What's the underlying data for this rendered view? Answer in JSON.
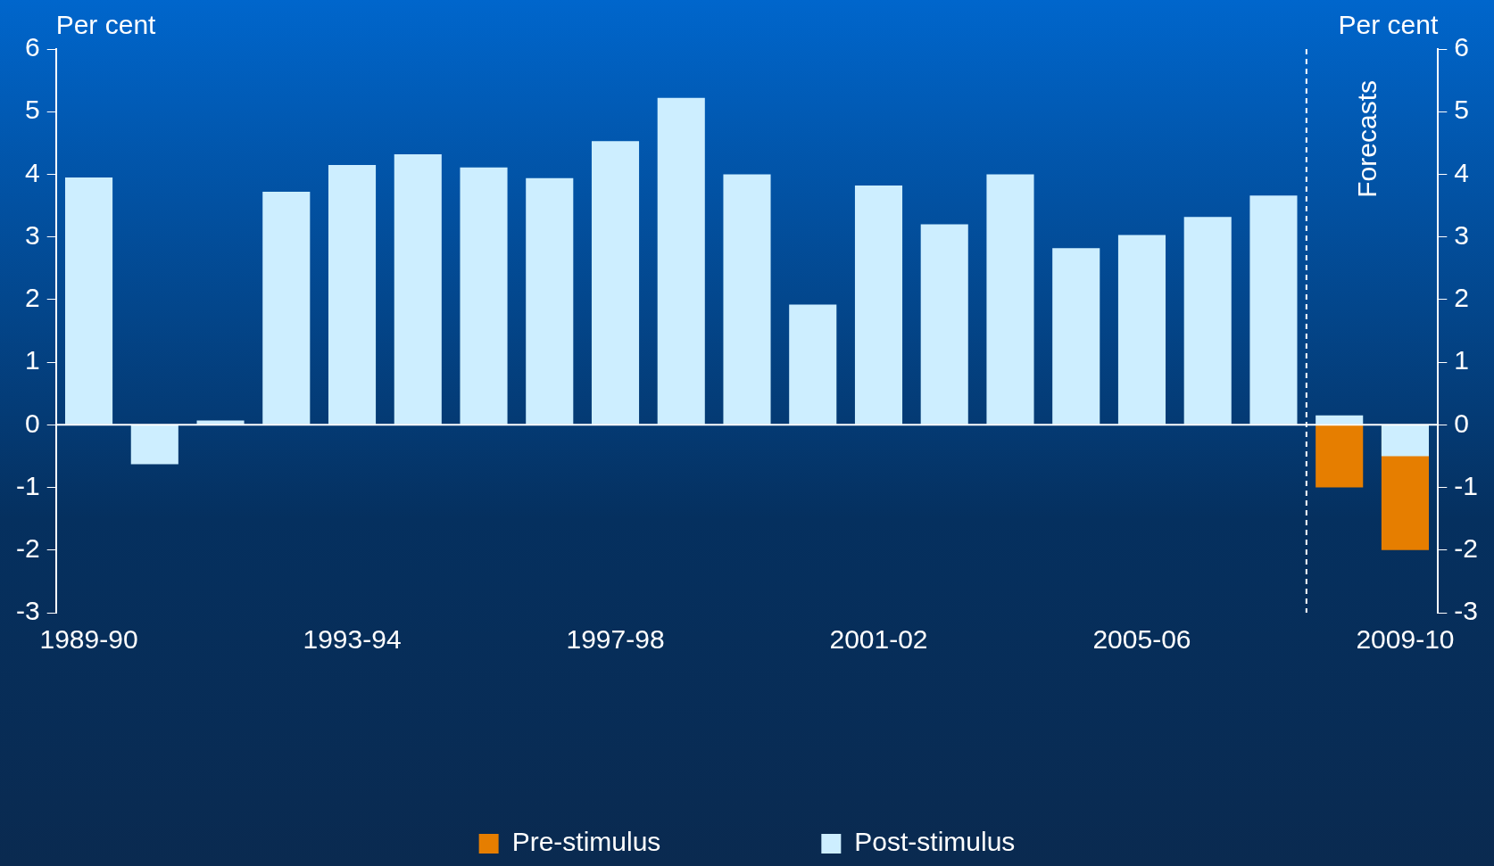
{
  "chart_data": {
    "type": "bar",
    "ylabel": "Per cent",
    "y2label": "Per cent",
    "categories": [
      "1989-90",
      null,
      null,
      null,
      "1993-94",
      null,
      null,
      null,
      "1997-98",
      null,
      null,
      null,
      "2001-02",
      null,
      null,
      null,
      "2005-06",
      null,
      null,
      null,
      "2009-10"
    ],
    "series": [
      {
        "name": "Pre-stimulus",
        "color": "#e67e00",
        "values": [
          null,
          null,
          null,
          null,
          null,
          null,
          null,
          null,
          null,
          null,
          null,
          null,
          null,
          null,
          null,
          null,
          null,
          null,
          null,
          -1,
          -2
        ]
      },
      {
        "name": "Post-stimulus",
        "color": "#cdeeff",
        "values": [
          3.95,
          -0.63,
          0.07,
          3.72,
          4.15,
          4.32,
          4.11,
          3.94,
          4.53,
          5.22,
          4.0,
          1.92,
          3.82,
          3.2,
          4.0,
          2.82,
          3.03,
          3.32,
          3.66,
          0.15,
          -0.5
        ]
      }
    ],
    "ylim": [
      -3,
      6
    ],
    "yticks": [
      -3,
      -2,
      -1,
      0,
      1,
      2,
      3,
      4,
      5,
      6
    ],
    "y2lim": [
      -3,
      6
    ],
    "y2ticks": [
      -3,
      -2,
      -1,
      0,
      1,
      2,
      3,
      4,
      5,
      6
    ],
    "annotations": [
      "Forecasts"
    ],
    "grid": false,
    "legend": "bottom"
  }
}
